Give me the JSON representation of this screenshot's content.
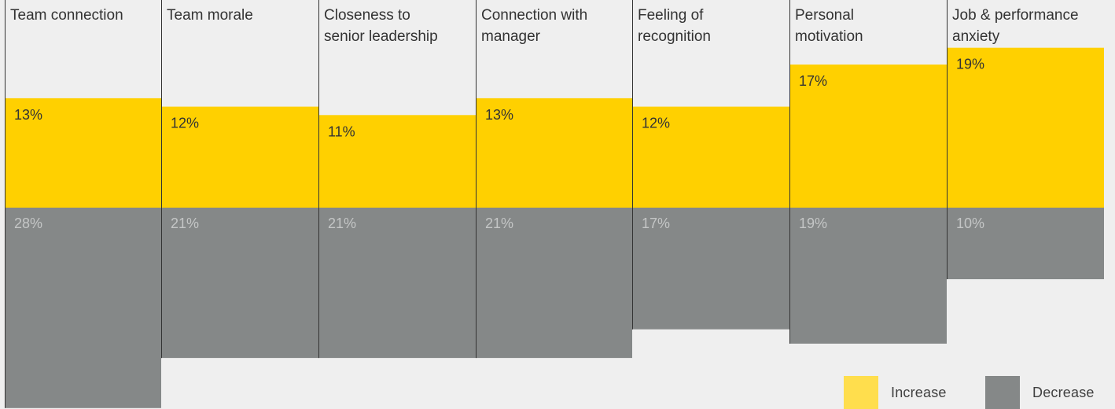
{
  "chart_data": {
    "type": "bar",
    "categories": [
      [
        "Team connection"
      ],
      [
        "Team morale"
      ],
      [
        "Closeness to",
        "senior leadership"
      ],
      [
        "Connection with",
        "manager"
      ],
      [
        "Feeling of",
        "recognition"
      ],
      [
        "Personal",
        "motivation"
      ],
      [
        "Job & performance",
        "anxiety"
      ]
    ],
    "series": [
      {
        "name": "Increase",
        "values": [
          13,
          12,
          11,
          13,
          12,
          17,
          19
        ],
        "labels": [
          "13%",
          "12%",
          "11%",
          "13%",
          "12%",
          "17%",
          "19%"
        ]
      },
      {
        "name": "Decrease",
        "values": [
          28,
          21,
          21,
          21,
          17,
          19,
          10
        ],
        "labels": [
          "28%",
          "21%",
          "21%",
          "21%",
          "17%",
          "19%",
          "10%"
        ]
      }
    ],
    "legend": {
      "placement": "bottom-right"
    },
    "colors": {
      "increase": "#ffd000",
      "decrease": "#858888",
      "legend_increase": "#ffde4d",
      "divider": "#333333",
      "label_dark": "#333333",
      "label_light": "#c4c6c6"
    }
  }
}
